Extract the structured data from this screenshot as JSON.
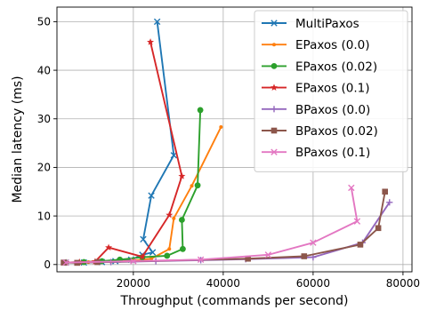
{
  "chart_data": {
    "type": "line",
    "title": "",
    "xlabel": "Throughput (commands per second)",
    "ylabel": "Median latency (ms)",
    "xlim": [
      3000,
      82000
    ],
    "ylim": [
      -1.5,
      53
    ],
    "xticks": [
      20000,
      40000,
      60000,
      80000
    ],
    "yticks": [
      0,
      10,
      20,
      30,
      40,
      50
    ],
    "grid": true,
    "legend_position": "top-right",
    "series": [
      {
        "name": "MultiPaxos",
        "color": "#1f77b4",
        "marker": "x",
        "points": [
          [
            5000,
            0.4
          ],
          [
            9000,
            0.4
          ],
          [
            13000,
            0.5
          ],
          [
            16000,
            0.7
          ],
          [
            19500,
            1.0
          ],
          [
            22000,
            2.0
          ],
          [
            24300,
            2.5
          ],
          [
            22200,
            5.2
          ],
          [
            24000,
            14.2
          ],
          [
            29000,
            22.5
          ],
          [
            25300,
            50.0
          ]
        ]
      },
      {
        "name": "EPaxos (0.0)",
        "color": "#ff7f0e",
        "marker": "point",
        "points": [
          [
            5000,
            0.4
          ],
          [
            10000,
            0.5
          ],
          [
            15000,
            0.6
          ],
          [
            20000,
            0.8
          ],
          [
            24000,
            1.2
          ],
          [
            28000,
            3.2
          ],
          [
            29000,
            9.5
          ],
          [
            33000,
            16.2
          ],
          [
            39500,
            28.3
          ]
        ]
      },
      {
        "name": "EPaxos (0.02)",
        "color": "#2ca02c",
        "marker": "circle",
        "points": [
          [
            5000,
            0.4
          ],
          [
            9000,
            0.5
          ],
          [
            13000,
            0.7
          ],
          [
            17000,
            1.0
          ],
          [
            22000,
            1.5
          ],
          [
            27500,
            1.8
          ],
          [
            31000,
            3.2
          ],
          [
            30800,
            9.2
          ],
          [
            34300,
            16.3
          ],
          [
            34900,
            31.8
          ]
        ]
      },
      {
        "name": "EPaxos (0.1)",
        "color": "#d62728",
        "marker": "star",
        "points": [
          [
            5000,
            0.4
          ],
          [
            8000,
            0.5
          ],
          [
            11500,
            0.6
          ],
          [
            14500,
            3.5
          ],
          [
            22000,
            1.6
          ],
          [
            28000,
            10.2
          ],
          [
            30800,
            18.2
          ],
          [
            23800,
            45.8
          ]
        ]
      },
      {
        "name": "BPaxos (0.0)",
        "color": "#9467bd",
        "marker": "plus",
        "points": [
          [
            5000,
            0.4
          ],
          [
            15000,
            0.5
          ],
          [
            25000,
            0.7
          ],
          [
            35000,
            0.9
          ],
          [
            45000,
            1.1
          ],
          [
            60000,
            1.5
          ],
          [
            71000,
            4.5
          ],
          [
            77000,
            12.8
          ]
        ]
      },
      {
        "name": "BPaxos (0.02)",
        "color": "#8c564b",
        "marker": "square",
        "points": [
          [
            4500,
            0.4
          ],
          [
            7500,
            0.35
          ],
          [
            12000,
            0.5
          ],
          [
            45500,
            1.2
          ],
          [
            58000,
            1.7
          ],
          [
            70500,
            4.1
          ],
          [
            74500,
            7.5
          ],
          [
            76000,
            15.0
          ]
        ]
      },
      {
        "name": "BPaxos (0.1)",
        "color": "#e377c2",
        "marker": "x",
        "points": [
          [
            5000,
            0.4
          ],
          [
            20000,
            0.7
          ],
          [
            35000,
            1.0
          ],
          [
            50000,
            2.0
          ],
          [
            60000,
            4.5
          ],
          [
            69800,
            8.9
          ],
          [
            68500,
            15.8
          ]
        ]
      }
    ]
  }
}
